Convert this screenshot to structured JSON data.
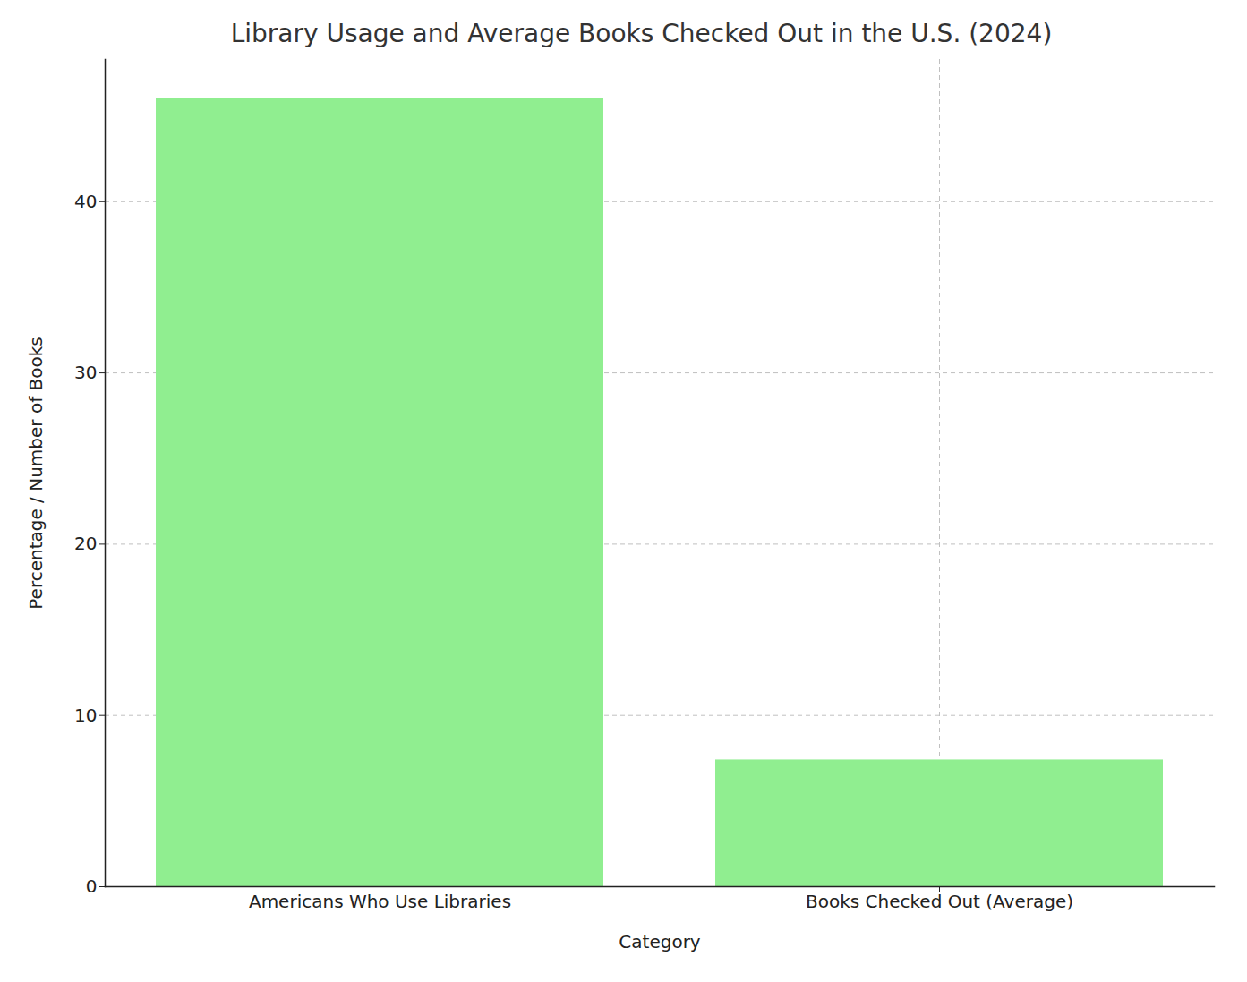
{
  "chart_data": {
    "type": "bar",
    "title": "Library Usage and Average Books Checked Out in the U.S. (2024)",
    "x_label": "Category",
    "y_label": "Percentage / Number of Books",
    "categories": [
      "Americans Who Use Libraries",
      "Books Checked Out (Average)"
    ],
    "values": [
      46,
      7.4
    ],
    "color": "#90ee90",
    "ylim": [
      0,
      48.3
    ],
    "yticks": [
      0,
      10,
      20,
      30,
      40
    ],
    "grid": true
  }
}
